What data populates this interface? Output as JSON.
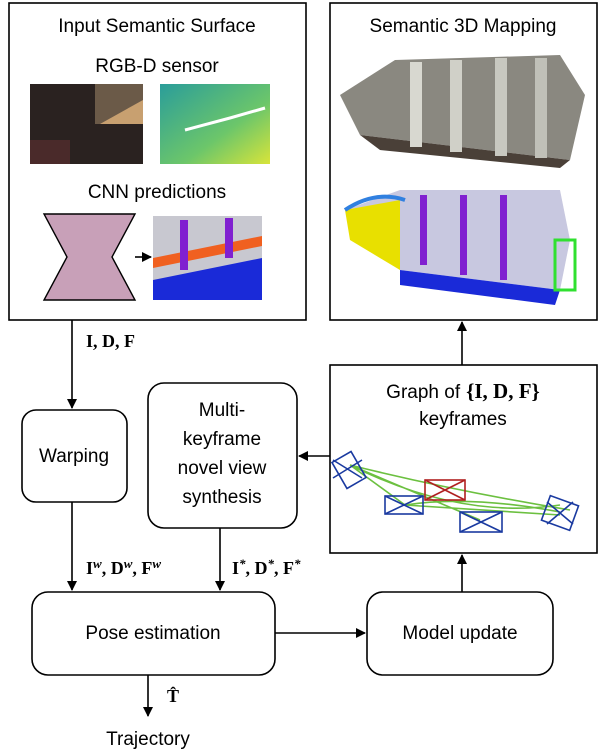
{
  "input_box": {
    "title": "Input Semantic Surface",
    "sensor_label": "RGB-D sensor",
    "cnn_label": "CNN predictions"
  },
  "mapping_box": {
    "title": "Semantic 3D Mapping"
  },
  "nodes": {
    "warping": "Warping",
    "synthesis": [
      "Multi-",
      "keyframe",
      "novel view",
      "synthesis"
    ],
    "graph": {
      "prefix": "Graph of",
      "math": "{I, D, F}",
      "line2": "keyframes"
    },
    "pose": "Pose estimation",
    "update": "Model update",
    "trajectory": "Trajectory"
  },
  "edge_labels": {
    "input": "I, D, F",
    "warped": [
      {
        "base": "I",
        "sup": "w"
      },
      {
        "base": ", D",
        "sup": "w"
      },
      {
        "base": ", F",
        "sup": "w"
      }
    ],
    "synth": [
      {
        "base": "I",
        "sup": "*"
      },
      {
        "base": ", D",
        "sup": "*"
      },
      {
        "base": ", F",
        "sup": "*"
      }
    ],
    "pose_out": "T̂"
  }
}
